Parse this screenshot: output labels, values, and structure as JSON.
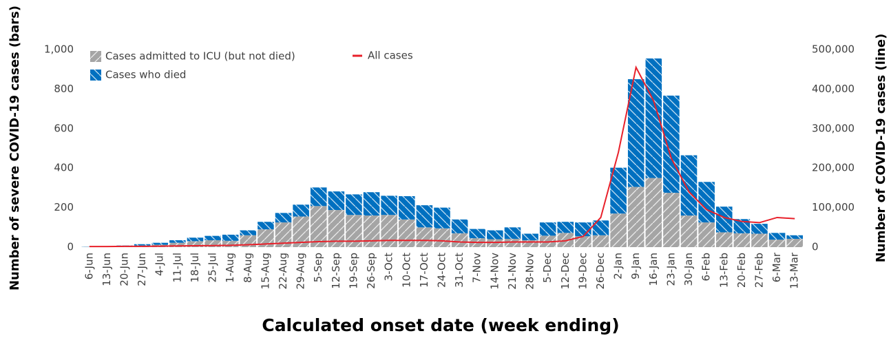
{
  "chart_data": {
    "type": "bar+line",
    "x_label": "Calculated onset date (week ending)",
    "y_label": "Number of severe COVID-19 cases (bars)",
    "y2_label": "Number of COVID-19 cases (line)",
    "categories": [
      "6-Jun",
      "13-Jun",
      "20-Jun",
      "27-Jun",
      "4-Jul",
      "11-Jul",
      "18-Jul",
      "25-Jul",
      "1-Aug",
      "8-Aug",
      "15-Aug",
      "22-Aug",
      "29-Aug",
      "5-Sep",
      "12-Sep",
      "19-Sep",
      "26-Sep",
      "3-Oct",
      "10-Oct",
      "17-Oct",
      "24-Oct",
      "31-Oct",
      "7-Nov",
      "14-Nov",
      "21-Nov",
      "28-Nov",
      "5-Dec",
      "12-Dec",
      "19-Dec",
      "26-Dec",
      "2-Jan",
      "9-Jan",
      "16-Jan",
      "23-Jan",
      "30-Jan",
      "6-Feb",
      "13-Feb",
      "20-Feb",
      "27-Feb",
      "6-Mar",
      "13-Mar"
    ],
    "series": [
      {
        "name": "Cases admitted to ICU (but not died)",
        "type": "bar",
        "color": "#a5a5a5",
        "values": [
          1,
          2,
          5,
          8,
          12,
          22,
          30,
          35,
          32,
          60,
          90,
          125,
          155,
          208,
          188,
          163,
          160,
          163,
          140,
          100,
          95,
          70,
          45,
          40,
          42,
          35,
          58,
          72,
          55,
          60,
          170,
          305,
          350,
          275,
          160,
          125,
          75,
          70,
          68,
          38,
          42
        ]
      },
      {
        "name": "Cases who died",
        "type": "bar",
        "color": "#0070c0",
        "values": [
          1,
          1,
          3,
          7,
          10,
          13,
          18,
          22,
          31,
          25,
          38,
          48,
          60,
          94,
          94,
          104,
          118,
          97,
          118,
          112,
          105,
          70,
          47,
          45,
          58,
          33,
          67,
          56,
          70,
          75,
          232,
          545,
          605,
          492,
          305,
          205,
          130,
          72,
          50,
          34,
          18
        ]
      },
      {
        "name": "All cases",
        "type": "line",
        "axis": "y2",
        "color": "#e8202a",
        "values": [
          1500,
          1500,
          2000,
          2000,
          2500,
          3000,
          3500,
          4000,
          4500,
          6000,
          8000,
          10000,
          12000,
          14000,
          15000,
          15000,
          16000,
          17000,
          17000,
          17000,
          16000,
          13000,
          12000,
          12000,
          13000,
          13000,
          13000,
          16000,
          27000,
          75000,
          240000,
          455000,
          370000,
          225000,
          140000,
          95000,
          75000,
          65000,
          62000,
          75000,
          72000
        ]
      }
    ],
    "ylim": [
      0,
      1000
    ],
    "yticks": [
      0,
      200,
      400,
      600,
      800,
      {
        "value": 1000,
        "label": "1,000"
      }
    ],
    "y2lim": [
      0,
      500000
    ],
    "y2ticks": [
      0,
      {
        "value": 100000,
        "label": "100,000"
      },
      {
        "value": 200000,
        "label": "200,000"
      },
      {
        "value": 300000,
        "label": "300,000"
      },
      {
        "value": 400000,
        "label": "400,000"
      },
      {
        "value": 500000,
        "label": "500,000"
      }
    ],
    "grid": false,
    "hatched": true
  }
}
